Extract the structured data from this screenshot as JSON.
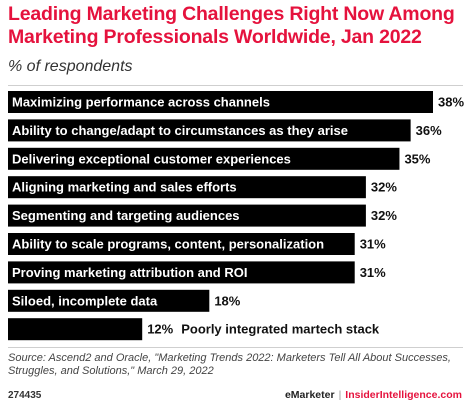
{
  "title": "Leading Marketing Challenges Right Now Among Marketing Professionals Worldwide, Jan 2022",
  "subtitle": "% of respondents",
  "chart_data": {
    "type": "bar",
    "orientation": "horizontal",
    "categories": [
      "Maximizing performance across channels",
      "Ability to change/adapt to circumstances as they arise",
      "Delivering exceptional customer experiences",
      "Aligning marketing and sales efforts",
      "Segmenting and targeting audiences",
      "Ability to scale programs, content, personalization",
      "Proving marketing attribution and ROI",
      "Siloed, incomplete data",
      "Poorly integrated martech stack"
    ],
    "values": [
      38,
      36,
      35,
      32,
      32,
      31,
      31,
      18,
      12
    ],
    "value_labels": [
      "38%",
      "36%",
      "35%",
      "32%",
      "32%",
      "31%",
      "31%",
      "18%",
      "12%"
    ],
    "bar_color": "#000000",
    "xlim": [
      0,
      38
    ],
    "grid": false,
    "legend": "none"
  },
  "source": "Source: Ascend2 and Oracle, \"Marketing Trends 2022: Marketers Tell All About Successes, Struggles, and Solutions,\" March 29, 2022",
  "footer": {
    "chart_id": "274435",
    "brand": "eMarketer",
    "separator": "|",
    "brand2": "InsiderIntelligence.com"
  },
  "colors": {
    "accent": "#e5123d",
    "bar": "#000000"
  }
}
